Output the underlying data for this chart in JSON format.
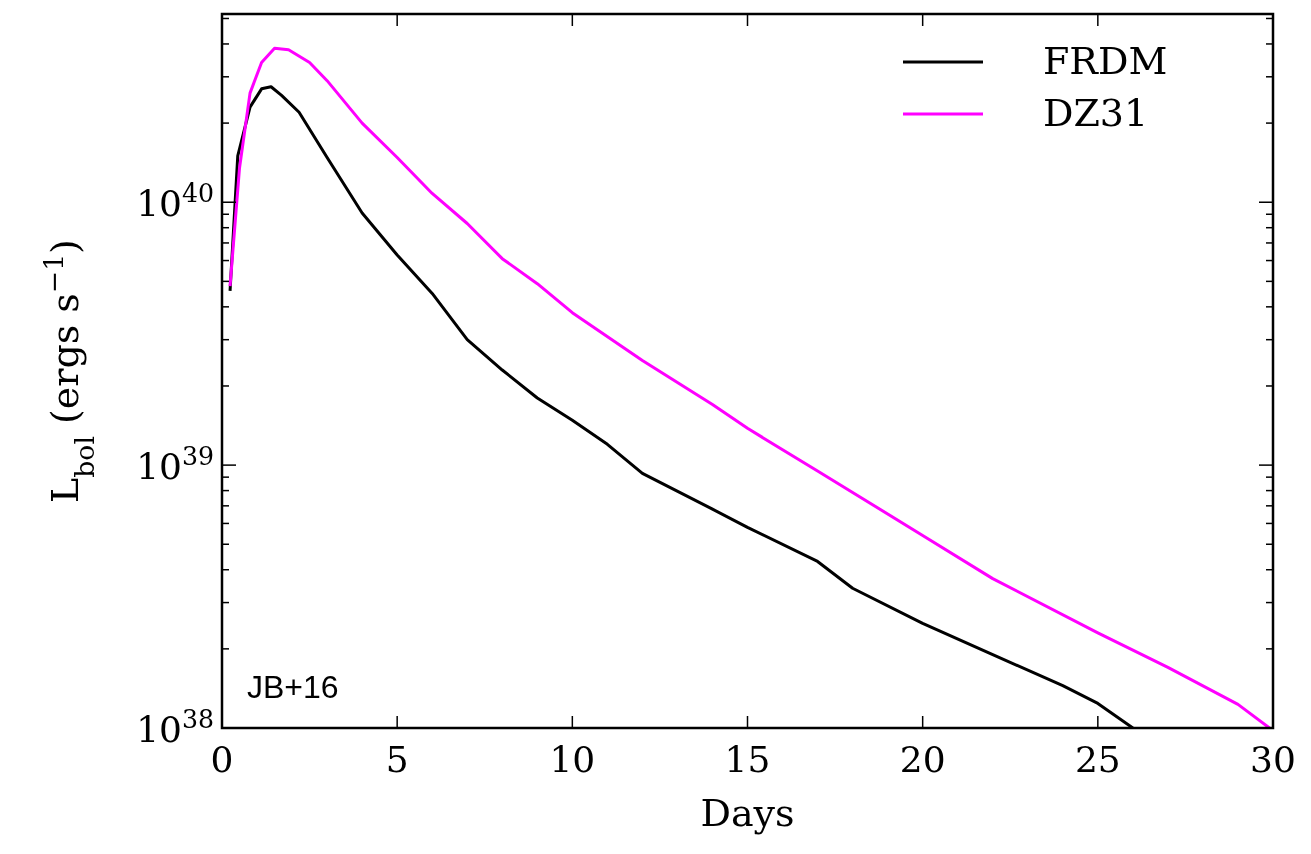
{
  "chart_data": {
    "type": "line",
    "xlabel": "Days",
    "ylabel": "L$_{bol}$ (ergs s$^{−1}$)",
    "log": "y",
    "xlim": [
      0,
      30
    ],
    "ylim": [
      1e+38,
      5.2e+40
    ],
    "xticks": [
      0,
      5,
      10,
      15,
      20,
      25,
      30
    ],
    "yticks": [
      {
        "value": 1e+38,
        "label": "10$^{38}$"
      },
      {
        "value": 2e+38,
        "label": null
      },
      {
        "value": 3e+38,
        "label": null
      },
      {
        "value": 4e+38,
        "label": null
      },
      {
        "value": 5e+38,
        "label": null
      },
      {
        "value": 6e+38,
        "label": null
      },
      {
        "value": 7e+38,
        "label": null
      },
      {
        "value": 8e+38,
        "label": null
      },
      {
        "value": 9e+38,
        "label": null
      },
      {
        "value": 1e+39,
        "label": "10$^{39}$"
      },
      {
        "value": 2e+39,
        "label": null
      },
      {
        "value": 3e+39,
        "label": null
      },
      {
        "value": 4e+39,
        "label": null
      },
      {
        "value": 5e+39,
        "label": null
      },
      {
        "value": 6e+39,
        "label": null
      },
      {
        "value": 7e+39,
        "label": null
      },
      {
        "value": 8e+39,
        "label": null
      },
      {
        "value": 9e+39,
        "label": null
      },
      {
        "value": 1e+40,
        "label": "10$^{40}$"
      },
      {
        "value": 2e+40,
        "label": null
      },
      {
        "value": 3e+40,
        "label": null
      },
      {
        "value": 4e+40,
        "label": null
      },
      {
        "value": 5e+40,
        "label": null
      }
    ],
    "grid": false,
    "legend": "top right",
    "annotations": [
      "JB+16"
    ],
    "series": [
      {
        "name": "FRDM",
        "color": "#000000",
        "x": [
          0.23,
          0.45,
          0.8,
          1.13,
          1.4,
          1.7,
          2.2,
          3,
          4,
          5,
          6,
          7,
          8,
          9,
          10,
          11,
          12,
          14,
          15,
          17,
          18,
          20,
          22,
          24,
          25,
          26
        ],
        "values": [
          4.6e+39,
          1.5e+40,
          2.3e+40,
          2.7e+40,
          2.75e+40,
          2.55e+40,
          2.2e+40,
          1.48e+40,
          9.1e+39,
          6.3e+39,
          4.5e+39,
          3e+39,
          2.3e+39,
          1.8e+39,
          1.48e+39,
          1.2e+39,
          9.3e+38,
          6.8e+38,
          5.8e+38,
          4.3e+38,
          3.4e+38,
          2.5e+38,
          1.9e+38,
          1.45e+38,
          1.24e+38,
          1e+38
        ]
      },
      {
        "name": "DZ31",
        "color": "#ff00ff",
        "x": [
          0.23,
          0.5,
          0.8,
          1.13,
          1.5,
          1.9,
          2.5,
          3,
          4,
          5,
          6,
          7,
          8,
          9,
          10,
          12,
          14,
          15,
          17,
          20,
          22,
          25,
          27,
          29,
          29.9
        ],
        "values": [
          4.8e+39,
          1.35e+40,
          2.6e+40,
          3.4e+40,
          3.85e+40,
          3.8e+40,
          3.4e+40,
          2.9e+40,
          2e+40,
          1.48e+40,
          1.08e+40,
          8.3e+39,
          6.1e+39,
          4.9e+39,
          3.8e+39,
          2.5e+39,
          1.7e+39,
          1.38e+39,
          9.5e+38,
          5.4e+38,
          3.7e+38,
          2.3e+38,
          1.7e+38,
          1.23e+38,
          1e+38
        ]
      }
    ]
  }
}
